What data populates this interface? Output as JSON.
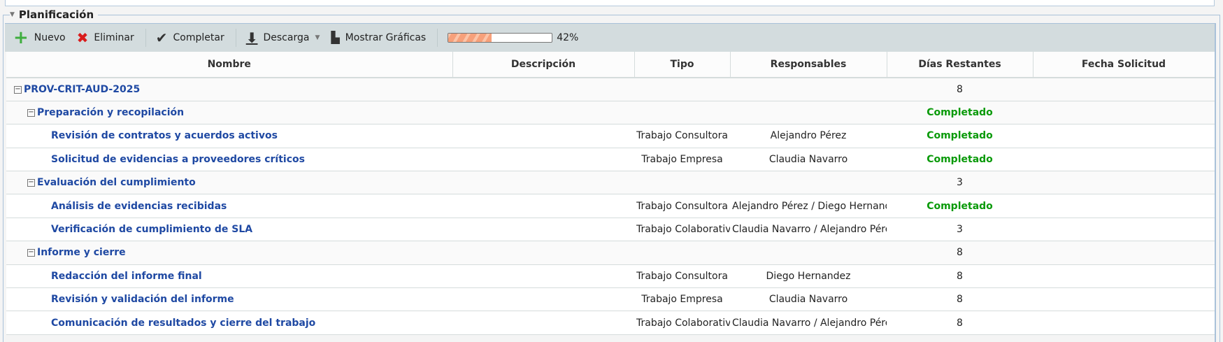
{
  "panel": {
    "title": "Planificación"
  },
  "toolbar": {
    "new_label": "Nuevo",
    "delete_label": "Eliminar",
    "complete_label": "Completar",
    "download_label": "Descarga",
    "charts_label": "Mostrar Gráficas",
    "progress_percent": 42,
    "progress_text": "42%"
  },
  "colors": {
    "link": "#1f49a3",
    "completed": "#0a9a0a",
    "toolbar_bg": "#d3dcde",
    "progress": "#f7a07a"
  },
  "columns": [
    "Nombre",
    "Descripción",
    "Tipo",
    "Responsables",
    "Días Restantes",
    "Fecha Solicitud"
  ],
  "rows": [
    {
      "level": 0,
      "name": "PROV-CRIT-AUD-2025",
      "desc": "",
      "tipo": "",
      "resp": "",
      "dias": "8",
      "fecha": ""
    },
    {
      "level": 1,
      "name": "Preparación y recopilación",
      "desc": "",
      "tipo": "",
      "resp": "",
      "dias": "Completado",
      "fecha": ""
    },
    {
      "level": 2,
      "name": "Revisión de contratos y acuerdos activos",
      "desc": "",
      "tipo": "Trabajo Consultora",
      "resp": "Alejandro Pérez",
      "dias": "Completado",
      "fecha": ""
    },
    {
      "level": 2,
      "name": "Solicitud de evidencias a proveedores críticos",
      "desc": "",
      "tipo": "Trabajo Empresa",
      "resp": "Claudia Navarro",
      "dias": "Completado",
      "fecha": ""
    },
    {
      "level": 1,
      "name": "Evaluación del cumplimiento",
      "desc": "",
      "tipo": "",
      "resp": "",
      "dias": "3",
      "fecha": ""
    },
    {
      "level": 2,
      "name": "Análisis de evidencias recibidas",
      "desc": "",
      "tipo": "Trabajo Consultora",
      "resp": "Alejandro Pérez / Diego Hernandez",
      "dias": "Completado",
      "fecha": ""
    },
    {
      "level": 2,
      "name": "Verificación de cumplimiento de SLA",
      "desc": "",
      "tipo": "Trabajo Colaborativo",
      "resp": "Claudia Navarro / Alejandro Pérez",
      "dias": "3",
      "fecha": ""
    },
    {
      "level": 1,
      "name": "Informe y cierre",
      "desc": "",
      "tipo": "",
      "resp": "",
      "dias": "8",
      "fecha": ""
    },
    {
      "level": 2,
      "name": "Redacción del informe final",
      "desc": "",
      "tipo": "Trabajo Consultora",
      "resp": "Diego Hernandez",
      "dias": "8",
      "fecha": ""
    },
    {
      "level": 2,
      "name": "Revisión y validación del informe",
      "desc": "",
      "tipo": "Trabajo Empresa",
      "resp": "Claudia Navarro",
      "dias": "8",
      "fecha": ""
    },
    {
      "level": 2,
      "name": "Comunicación de resultados y cierre del trabajo",
      "desc": "",
      "tipo": "Trabajo Colaborativo",
      "resp": "Claudia Navarro / Alejandro Pérez",
      "dias": "8",
      "fecha": ""
    }
  ]
}
